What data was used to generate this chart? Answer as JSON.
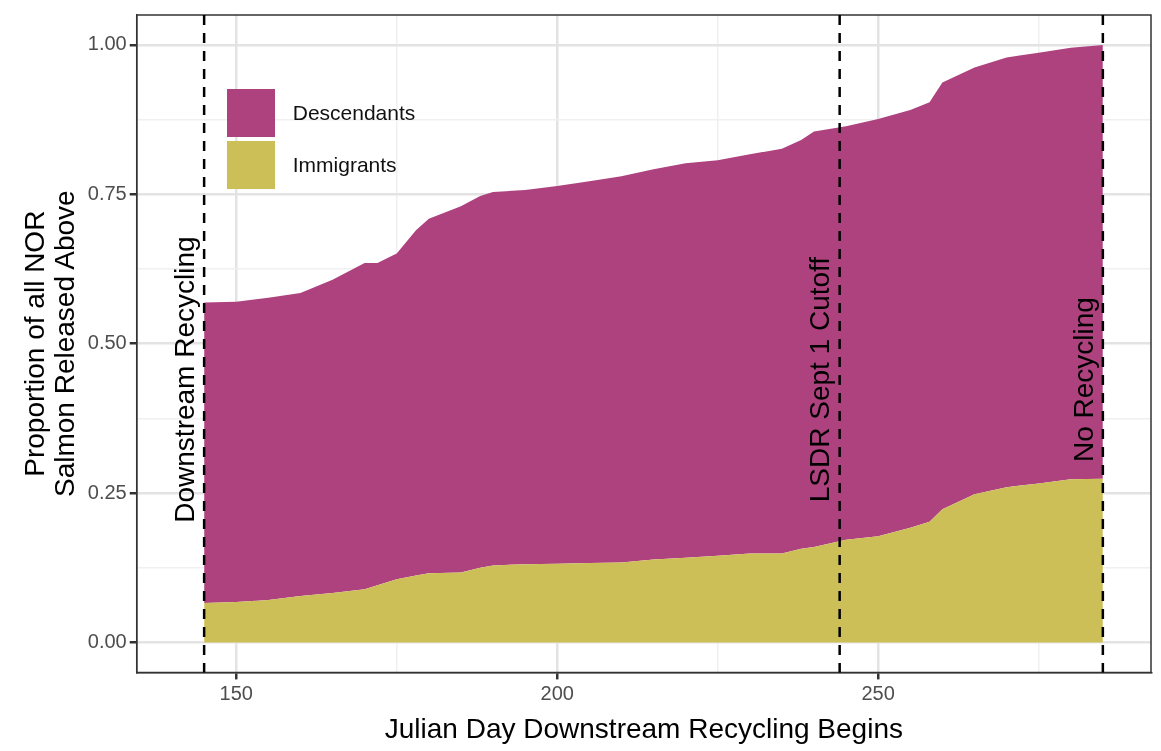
{
  "chart_data": {
    "type": "area",
    "stacked": true,
    "xlabel": "Julian Day Downstream Recycling Begins",
    "ylabel": "Proportion of all NOR\nSalmon Released Above",
    "x": [
      145,
      150,
      155,
      160,
      165,
      170,
      172,
      175,
      178,
      180,
      185,
      188,
      190,
      195,
      200,
      205,
      210,
      215,
      220,
      225,
      230,
      235,
      238,
      240,
      245,
      250,
      255,
      258,
      260,
      265,
      270,
      275,
      280,
      285
    ],
    "series": [
      {
        "name": "Immigrants",
        "color": "#cdbf58",
        "values": [
          0.066,
          0.068,
          0.071,
          0.078,
          0.083,
          0.089,
          0.096,
          0.106,
          0.112,
          0.116,
          0.117,
          0.125,
          0.129,
          0.131,
          0.132,
          0.133,
          0.134,
          0.139,
          0.142,
          0.145,
          0.149,
          0.149,
          0.157,
          0.16,
          0.172,
          0.178,
          0.192,
          0.202,
          0.223,
          0.248,
          0.26,
          0.266,
          0.273,
          0.274
        ]
      },
      {
        "name": "Descendants",
        "color": "#ae427f",
        "values": [
          0.503,
          0.502,
          0.506,
          0.507,
          0.524,
          0.546,
          0.539,
          0.545,
          0.578,
          0.593,
          0.613,
          0.622,
          0.625,
          0.626,
          0.632,
          0.639,
          0.646,
          0.653,
          0.66,
          0.662,
          0.668,
          0.677,
          0.684,
          0.695,
          0.692,
          0.698,
          0.699,
          0.702,
          0.714,
          0.714,
          0.719,
          0.721,
          0.722,
          0.726
        ]
      }
    ],
    "xlim": [
      134.5,
      292.5
    ],
    "ylim": [
      -0.05,
      1.05
    ],
    "xticks": [
      150,
      {
        "value": 175,
        "label": null
      },
      200,
      {
        "value": 225,
        "label": null
      },
      250,
      {
        "value": 275,
        "label": null
      }
    ],
    "yticks": [
      {
        "value": 0,
        "label": "0.00"
      },
      {
        "value": 0.125,
        "label": null
      },
      {
        "value": 0.25,
        "label": "0.25"
      },
      {
        "value": 0.375,
        "label": null
      },
      {
        "value": 0.5,
        "label": "0.50"
      },
      {
        "value": 0.625,
        "label": null
      },
      {
        "value": 0.75,
        "label": "0.75"
      },
      {
        "value": 0.875,
        "label": null
      },
      {
        "value": 1,
        "label": "1.00"
      }
    ],
    "ref_lines": [
      {
        "axis": "x",
        "value": 145,
        "label": "Downstream Recycling",
        "line_style": "dashed"
      },
      {
        "axis": "x",
        "value": 244,
        "label": "LSDR Sept 1 Cutoff",
        "line_style": "dashed"
      },
      {
        "axis": "x",
        "value": 285,
        "label": "No Recycling",
        "line_style": "dashed"
      }
    ],
    "grid": true,
    "legend": "top left"
  }
}
